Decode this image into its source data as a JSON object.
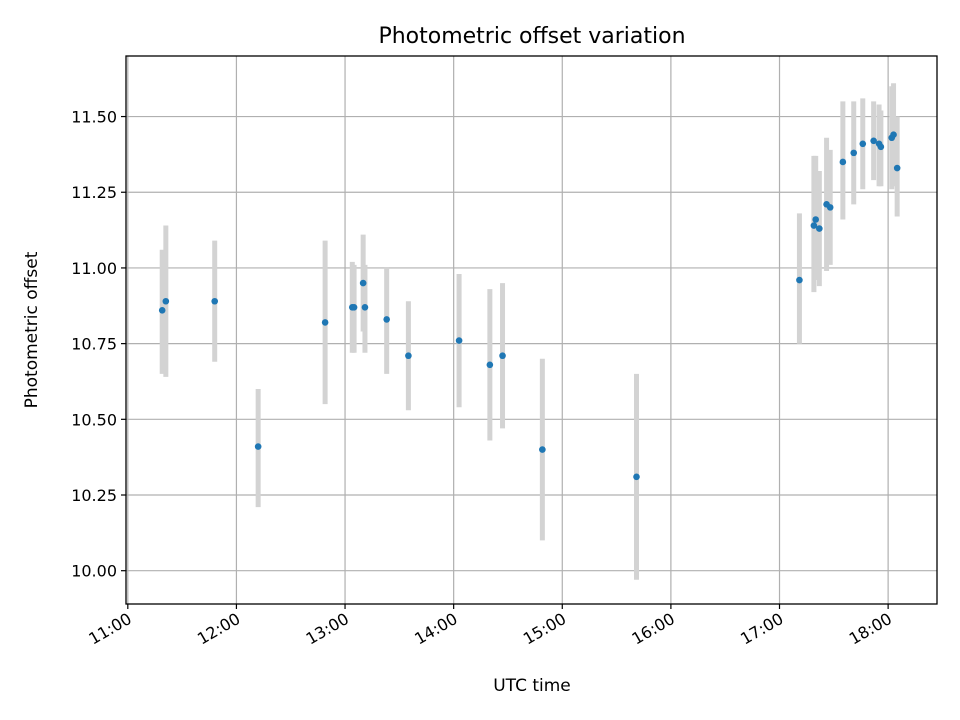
{
  "chart_data": {
    "type": "scatter",
    "title": "Photometric offset variation",
    "xlabel": "UTC time",
    "ylabel": "Photometric offset",
    "x_ticks": [
      "11:00",
      "12:00",
      "13:00",
      "14:00",
      "15:00",
      "16:00",
      "17:00",
      "18:00"
    ],
    "y_ticks": [
      "10.00",
      "10.25",
      "10.50",
      "10.75",
      "11.00",
      "11.25",
      "11.50"
    ],
    "xlim": [
      "10:59",
      "18:27"
    ],
    "ylim": [
      9.89,
      11.7
    ],
    "grid": true,
    "error_bars": true,
    "colors": {
      "point": "#1f77b4",
      "error_bar": "#d3d3d3",
      "grid": "#b0b0b0"
    },
    "points": [
      {
        "x": "11:19",
        "y": 10.86,
        "lo": 10.65,
        "hi": 11.06
      },
      {
        "x": "11:21",
        "y": 10.89,
        "lo": 10.64,
        "hi": 11.14
      },
      {
        "x": "11:48",
        "y": 10.89,
        "lo": 10.69,
        "hi": 11.09
      },
      {
        "x": "12:12",
        "y": 10.41,
        "lo": 10.21,
        "hi": 10.6
      },
      {
        "x": "12:49",
        "y": 10.82,
        "lo": 10.55,
        "hi": 11.09
      },
      {
        "x": "13:04",
        "y": 10.87,
        "lo": 10.72,
        "hi": 11.02
      },
      {
        "x": "13:05",
        "y": 10.87,
        "lo": 10.72,
        "hi": 11.01
      },
      {
        "x": "13:10",
        "y": 10.95,
        "lo": 10.79,
        "hi": 11.11
      },
      {
        "x": "13:11",
        "y": 10.87,
        "lo": 10.72,
        "hi": 11.01
      },
      {
        "x": "13:23",
        "y": 10.83,
        "lo": 10.65,
        "hi": 11.0
      },
      {
        "x": "13:35",
        "y": 10.71,
        "lo": 10.53,
        "hi": 10.89
      },
      {
        "x": "14:03",
        "y": 10.76,
        "lo": 10.54,
        "hi": 10.98
      },
      {
        "x": "14:20",
        "y": 10.68,
        "lo": 10.43,
        "hi": 10.93
      },
      {
        "x": "14:27",
        "y": 10.71,
        "lo": 10.47,
        "hi": 10.95
      },
      {
        "x": "14:49",
        "y": 10.4,
        "lo": 10.1,
        "hi": 10.7
      },
      {
        "x": "15:41",
        "y": 10.31,
        "lo": 9.97,
        "hi": 10.65
      },
      {
        "x": "17:11",
        "y": 10.96,
        "lo": 10.75,
        "hi": 11.18
      },
      {
        "x": "17:19",
        "y": 11.14,
        "lo": 10.92,
        "hi": 11.37
      },
      {
        "x": "17:20",
        "y": 11.16,
        "lo": 10.96,
        "hi": 11.37
      },
      {
        "x": "17:22",
        "y": 11.13,
        "lo": 10.94,
        "hi": 11.32
      },
      {
        "x": "17:26",
        "y": 11.21,
        "lo": 10.99,
        "hi": 11.43
      },
      {
        "x": "17:28",
        "y": 11.2,
        "lo": 11.01,
        "hi": 11.39
      },
      {
        "x": "17:35",
        "y": 11.35,
        "lo": 11.16,
        "hi": 11.55
      },
      {
        "x": "17:41",
        "y": 11.38,
        "lo": 11.21,
        "hi": 11.55
      },
      {
        "x": "17:46",
        "y": 11.41,
        "lo": 11.26,
        "hi": 11.56
      },
      {
        "x": "17:52",
        "y": 11.42,
        "lo": 11.29,
        "hi": 11.55
      },
      {
        "x": "17:55",
        "y": 11.41,
        "lo": 11.27,
        "hi": 11.54
      },
      {
        "x": "17:56",
        "y": 11.4,
        "lo": 11.27,
        "hi": 11.52
      },
      {
        "x": "18:02",
        "y": 11.43,
        "lo": 11.26,
        "hi": 11.6
      },
      {
        "x": "18:03",
        "y": 11.44,
        "lo": 11.27,
        "hi": 11.61
      },
      {
        "x": "18:05",
        "y": 11.33,
        "lo": 11.17,
        "hi": 11.5
      }
    ]
  }
}
